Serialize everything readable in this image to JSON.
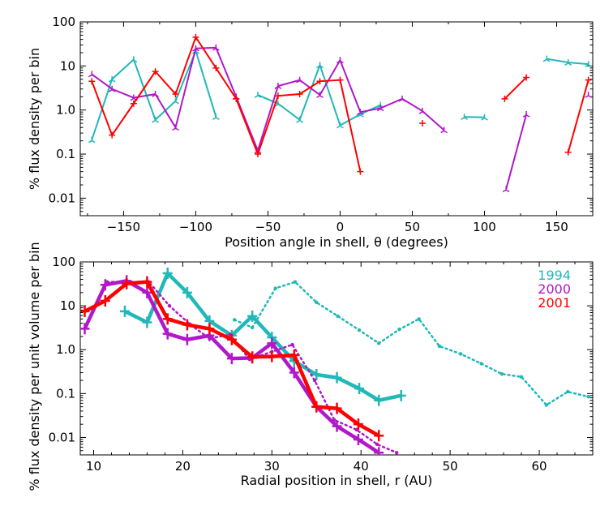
{
  "chart_data": [
    {
      "type": "line",
      "xlabel": "Position angle in shell, θ (degrees)",
      "ylabel": "% flux density per bin",
      "xlim": [
        -180,
        175
      ],
      "ylim": [
        0.004,
        100
      ],
      "yscale": "log",
      "xticks": [
        -150,
        -100,
        -50,
        0,
        50,
        100,
        150
      ],
      "yticks": [
        0.01,
        0.1,
        1.0,
        10,
        100
      ],
      "ytick_labels": [
        "0.01",
        "0.1",
        "1.0",
        "10",
        "100"
      ],
      "series": [
        {
          "name": "1994",
          "color": "#20b8b8",
          "segments": [
            [
              [
                -172,
                0.21
              ],
              [
                -158,
                5
              ],
              [
                -143,
                14
              ],
              [
                -128,
                0.6
              ],
              [
                -114,
                1.6
              ],
              [
                -100,
                22
              ],
              [
                -86,
                0.7
              ]
            ],
            [
              [
                -57,
                2.2
              ],
              [
                -43,
                1.4
              ],
              [
                -28,
                0.6
              ],
              [
                -14,
                10.5
              ],
              [
                0,
                0.45
              ],
              [
                14,
                0.8
              ],
              [
                28,
                1.3
              ]
            ],
            [
              [
                86,
                0.7
              ],
              [
                100,
                0.68
              ]
            ],
            [
              [
                143,
                14.5
              ],
              [
                158,
                12
              ],
              [
                172,
                11
              ]
            ]
          ]
        },
        {
          "name": "2000",
          "color": "#b018c8",
          "segments": [
            [
              [
                -172,
                6.5
              ],
              [
                -158,
                3
              ],
              [
                -143,
                1.9
              ],
              [
                -128,
                2.3
              ],
              [
                -114,
                0.4
              ],
              [
                -100,
                25
              ],
              [
                -86,
                26
              ],
              [
                -72,
                2
              ],
              [
                -57,
                0.12
              ],
              [
                -43,
                3.5
              ],
              [
                -28,
                4.8
              ],
              [
                -14,
                2.2
              ],
              [
                0,
                13.5
              ],
              [
                14,
                0.9
              ],
              [
                28,
                1.1
              ],
              [
                43,
                1.8
              ],
              [
                57,
                0.95
              ],
              [
                72,
                0.35
              ]
            ],
            [
              [
                115,
                0.016
              ],
              [
                129,
                0.8
              ]
            ],
            [
              [
                172,
                2.2
              ]
            ]
          ]
        },
        {
          "name": "2001",
          "color": "#ff0000",
          "segments": [
            [
              [
                -172,
                4.5
              ],
              [
                -158,
                0.27
              ],
              [
                -143,
                1.4
              ],
              [
                -128,
                7.5
              ],
              [
                -114,
                2.3
              ],
              [
                -100,
                45
              ],
              [
                -86,
                9
              ],
              [
                -72,
                1.8
              ],
              [
                -57,
                0.1
              ],
              [
                -43,
                2.1
              ],
              [
                -28,
                2.3
              ],
              [
                -14,
                4.5
              ],
              [
                0,
                4.8
              ],
              [
                14,
                0.04
              ]
            ],
            [
              [
                57,
                0.5
              ]
            ],
            [
              [
                114,
                1.8
              ],
              [
                129,
                5.5
              ]
            ],
            [
              [
                158,
                0.11
              ],
              [
                172,
                4.8
              ]
            ]
          ]
        }
      ]
    },
    {
      "type": "line",
      "xlabel": "Radial position in shell, r (AU)",
      "ylabel": "% flux density per unit volume per bin",
      "xlim": [
        8.5,
        66
      ],
      "ylim": [
        0.004,
        100
      ],
      "yscale": "log",
      "xticks": [
        10,
        20,
        30,
        40,
        50,
        60
      ],
      "yticks": [
        0.01,
        0.1,
        1.0,
        10,
        100
      ],
      "ytick_labels": [
        "0.01",
        "0.1",
        "1.0",
        "10",
        "100"
      ],
      "legend": {
        "position": "top-right",
        "entries": [
          "1994",
          "2000",
          "2001"
        ]
      },
      "series": [
        {
          "name": "1994",
          "color": "#20b8b8",
          "solid": [
            [
              13.5,
              7.5
            ],
            [
              16,
              4.2
            ],
            [
              18.3,
              55
            ],
            [
              20.5,
              20
            ],
            [
              23,
              4.5
            ],
            [
              25.5,
              2.1
            ],
            [
              27.8,
              5.8
            ],
            [
              30,
              1.9
            ],
            [
              32.5,
              0.55
            ],
            [
              35,
              0.27
            ],
            [
              37.3,
              0.23
            ],
            [
              39.8,
              0.13
            ],
            [
              42,
              0.07
            ],
            [
              44.5,
              0.09
            ]
          ],
          "dotted": [
            [
              25.8,
              4.8
            ],
            [
              27.8,
              3.2
            ],
            [
              30.4,
              25
            ],
            [
              32.6,
              35
            ],
            [
              35,
              12
            ],
            [
              37.4,
              5.8
            ],
            [
              39.8,
              2.8
            ],
            [
              42,
              1.4
            ],
            [
              44.3,
              2.9
            ],
            [
              46.5,
              5
            ],
            [
              48.8,
              1.2
            ],
            [
              51.2,
              0.8
            ],
            [
              53.5,
              0.48
            ],
            [
              55.8,
              0.28
            ],
            [
              58,
              0.24
            ],
            [
              60.8,
              0.055
            ],
            [
              63.2,
              0.11
            ],
            [
              65.5,
              0.085
            ]
          ]
        },
        {
          "name": "2000",
          "color": "#b018c8",
          "solid": [
            [
              9,
              3
            ],
            [
              11.3,
              30
            ],
            [
              13.7,
              37
            ],
            [
              16,
              20
            ],
            [
              18.3,
              2.3
            ],
            [
              20.5,
              1.7
            ],
            [
              23,
              2.1
            ],
            [
              25.5,
              0.63
            ],
            [
              27.8,
              0.65
            ],
            [
              30,
              1.4
            ],
            [
              32.5,
              0.3
            ],
            [
              35,
              0.05
            ],
            [
              37.3,
              0.018
            ],
            [
              39.7,
              0.009
            ],
            [
              42,
              0.0045
            ]
          ],
          "dotted": [
            [
              11.5,
              35
            ],
            [
              14,
              35
            ],
            [
              16.2,
              35
            ],
            [
              18.5,
              10
            ],
            [
              20.8,
              3.8
            ],
            [
              23,
              1.8
            ],
            [
              25.3,
              2.2
            ],
            [
              27.5,
              0.6
            ],
            [
              30,
              0.9
            ],
            [
              32.3,
              1.3
            ],
            [
              34.8,
              0.2
            ],
            [
              37,
              0.025
            ],
            [
              39.5,
              0.015
            ],
            [
              41.8,
              0.007
            ],
            [
              44,
              0.0045
            ]
          ]
        },
        {
          "name": "2001",
          "color": "#ff0000",
          "solid": [
            [
              9,
              7.5
            ],
            [
              11.3,
              13
            ],
            [
              13.7,
              32
            ],
            [
              16,
              35
            ],
            [
              18.3,
              5
            ],
            [
              20.5,
              3.7
            ],
            [
              23,
              3
            ],
            [
              25.5,
              1.7
            ],
            [
              27.8,
              0.68
            ],
            [
              30,
              0.7
            ],
            [
              32.5,
              0.75
            ],
            [
              35,
              0.05
            ],
            [
              37.3,
              0.046
            ],
            [
              39.7,
              0.02
            ],
            [
              42,
              0.011
            ]
          ],
          "dotted": []
        }
      ]
    }
  ]
}
